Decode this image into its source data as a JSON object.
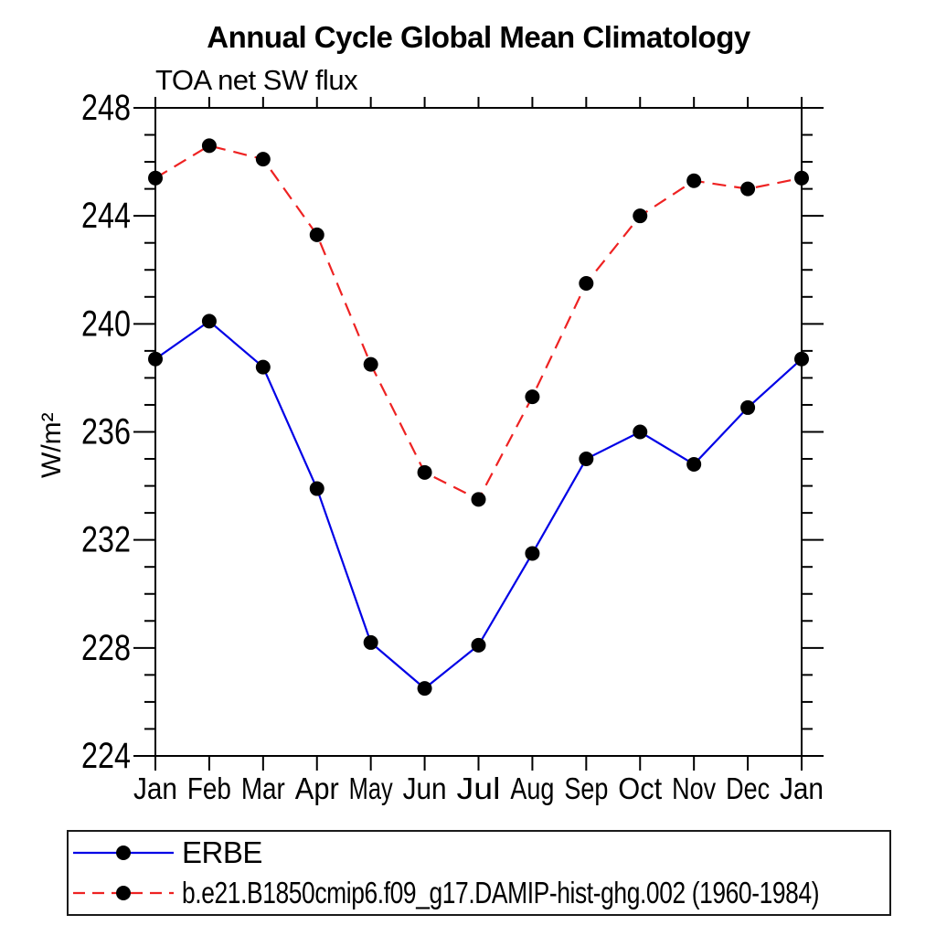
{
  "chart_data": {
    "type": "line",
    "title": "Annual Cycle Global Mean Climatology",
    "subtitle": "TOA net SW flux",
    "ylabel": "W/m²",
    "categories": [
      "Jan",
      "Feb",
      "Mar",
      "Apr",
      "May",
      "Jun",
      "Jul",
      "Aug",
      "Sep",
      "Oct",
      "Nov",
      "Dec",
      "Jan"
    ],
    "ylim": [
      224,
      248
    ],
    "y_major_ticks": [
      224,
      228,
      232,
      236,
      240,
      244,
      248
    ],
    "y_minor_step": 1,
    "grid": false,
    "legend_position": "below-plot-left",
    "frame_color": "#000000",
    "series": [
      {
        "name": "ERBE",
        "line_color": "#0000e6",
        "line_style": "solid",
        "marker": "filled-circle",
        "marker_color": "#000000",
        "values": [
          238.7,
          240.1,
          238.4,
          233.9,
          228.2,
          226.5,
          228.1,
          231.5,
          235.0,
          236.0,
          234.8,
          236.9,
          238.7
        ]
      },
      {
        "name": "b.e21.B1850cmip6.f09_g17.DAMIP-hist-ghg.002 (1960-1984)",
        "line_color": "#ee2222",
        "line_style": "dashed",
        "marker": "filled-circle",
        "marker_color": "#000000",
        "values": [
          245.4,
          246.6,
          246.1,
          243.3,
          238.5,
          234.5,
          233.5,
          237.3,
          241.5,
          244.0,
          245.3,
          245.0,
          245.4
        ]
      }
    ]
  }
}
